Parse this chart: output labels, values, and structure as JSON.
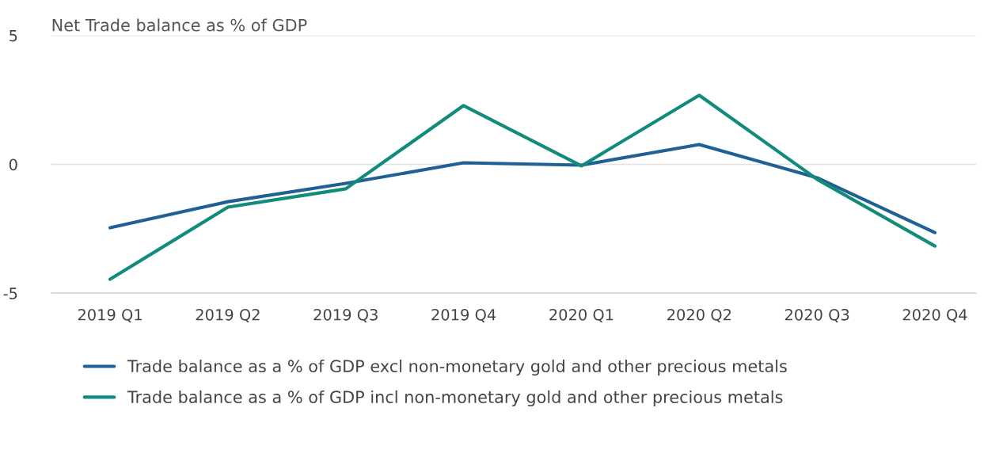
{
  "chart_data": {
    "type": "line",
    "title": "Net Trade balance as % of GDP",
    "categories": [
      "2019 Q1",
      "2019 Q2",
      "2019 Q3",
      "2019 Q4",
      "2020 Q1",
      "2020 Q2",
      "2020 Q3",
      "2020 Q4"
    ],
    "series": [
      {
        "name": "Trade balance as a % of GDP excl non-monetary gold and other precious metals",
        "color": "#206095",
        "values": [
          -2.46,
          -1.45,
          -0.74,
          0.06,
          -0.03,
          0.77,
          -0.52,
          -2.65
        ]
      },
      {
        "name": "Trade balance as a % of GDP incl non-monetary gold and other precious metals",
        "color": "#118c7b",
        "values": [
          -4.46,
          -1.66,
          -0.95,
          2.28,
          -0.06,
          2.68,
          -0.58,
          -3.17
        ]
      }
    ],
    "ylim": [
      -5,
      5
    ],
    "yticks": [
      {
        "value": -5,
        "label": "-5"
      },
      0,
      5
    ],
    "grid": "y",
    "legend": "bottom",
    "marker": "none",
    "line_style": "solid"
  }
}
